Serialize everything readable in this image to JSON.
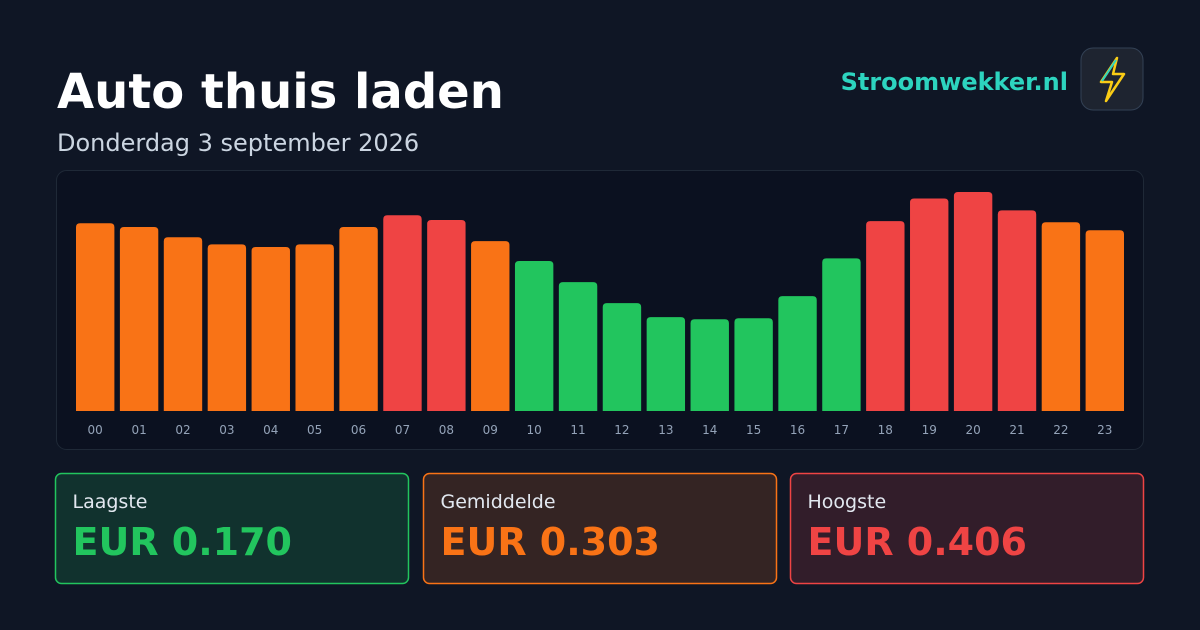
{
  "chart_data": {
    "type": "bar",
    "title": "Auto thuis laden",
    "subtitle": "Donderdag 3 september 2026",
    "categories": [
      "00",
      "01",
      "02",
      "03",
      "04",
      "05",
      "06",
      "07",
      "08",
      "09",
      "10",
      "11",
      "12",
      "13",
      "14",
      "15",
      "16",
      "17",
      "18",
      "19",
      "20",
      "21",
      "22",
      "23"
    ],
    "values": [
      0.348,
      0.341,
      0.322,
      0.309,
      0.304,
      0.309,
      0.341,
      0.363,
      0.354,
      0.315,
      0.278,
      0.239,
      0.2,
      0.174,
      0.17,
      0.172,
      0.213,
      0.283,
      0.352,
      0.394,
      0.406,
      0.372,
      0.35,
      0.335
    ],
    "colors": [
      "#f97316",
      "#f97316",
      "#f97316",
      "#f97316",
      "#f97316",
      "#f97316",
      "#f97316",
      "#ef4444",
      "#ef4444",
      "#f97316",
      "#22c55e",
      "#22c55e",
      "#22c55e",
      "#22c55e",
      "#22c55e",
      "#22c55e",
      "#22c55e",
      "#22c55e",
      "#ef4444",
      "#ef4444",
      "#ef4444",
      "#ef4444",
      "#f97316",
      "#f97316"
    ]
  },
  "brand": "Stroomwekker.nl",
  "stats": [
    {
      "label": "Laagste",
      "value": "EUR 0.170",
      "color": "#22c55e"
    },
    {
      "label": "Gemiddelde",
      "value": "EUR 0.303",
      "color": "#f97316"
    },
    {
      "label": "Hoogste",
      "value": "EUR 0.406",
      "color": "#ef4444"
    }
  ]
}
